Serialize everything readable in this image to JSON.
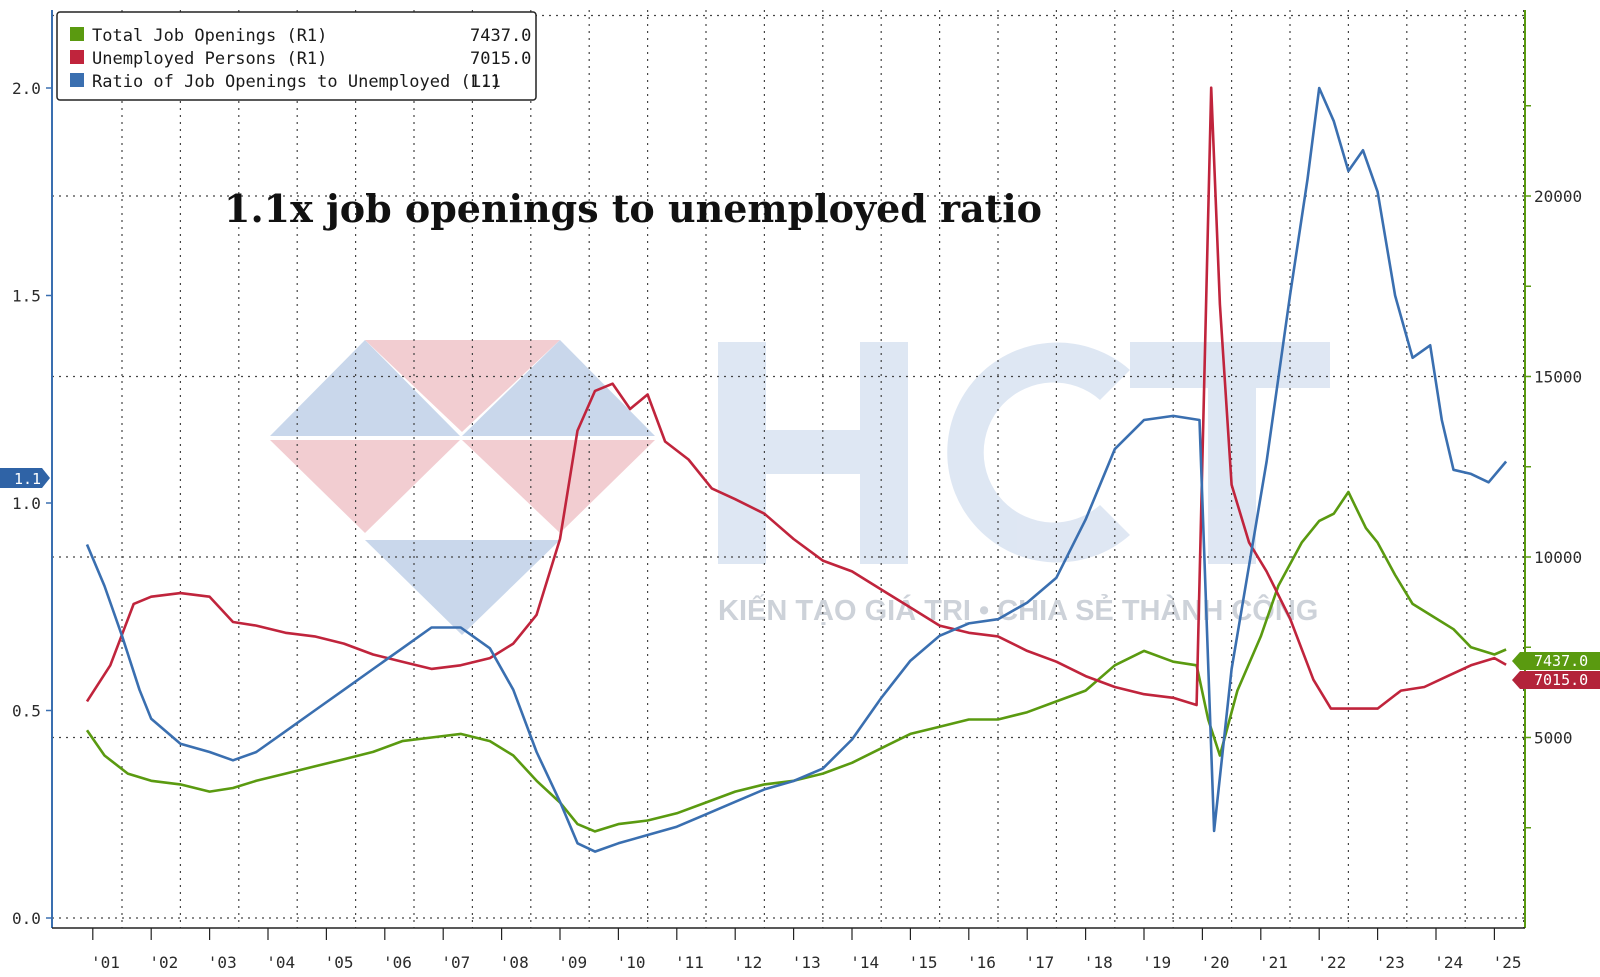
{
  "chart_data": {
    "type": "line",
    "annotation": "1.1x job openings to unemployed ratio",
    "x_ticks": [
      "'01",
      "'02",
      "'03",
      "'04",
      "'05",
      "'06",
      "'07",
      "'08",
      "'09",
      "'10",
      "'11",
      "'12",
      "'13",
      "'14",
      "'15",
      "'16",
      "'17",
      "'18",
      "'19",
      "'20",
      "'21",
      "'22",
      "'23",
      "'24",
      "'25"
    ],
    "left_axis": {
      "ticks": [
        "0.0",
        "0.5",
        "1.0",
        "1.5",
        "2.0"
      ],
      "ylim": [
        0,
        2.2
      ]
    },
    "right_axis": {
      "ticks": [
        "5000",
        "10000",
        "15000",
        "20000"
      ],
      "ylim": [
        0,
        25000
      ]
    },
    "legend": {
      "placement": "top-left",
      "entries": [
        {
          "label": "Total Job Openings (R1)",
          "value": "7437.0",
          "color": "#5a9a10"
        },
        {
          "label": "Unemployed Persons (R1)",
          "value": "7015.0",
          "color": "#c0243c"
        },
        {
          "label": "Ratio of Job Openings to Unemployed (L1)",
          "value": "1.1",
          "color": "#3a6fb0"
        }
      ]
    },
    "last_value_tags": {
      "left": "1.1",
      "right_top": "7437.0",
      "right_bottom": "7015.0"
    },
    "grid": true,
    "series": [
      {
        "name": "Total Job Openings (R1)",
        "axis": "right",
        "color": "#5a9a10",
        "x": [
          2000.9,
          2001.2,
          2001.6,
          2002.0,
          2002.5,
          2003.0,
          2003.4,
          2003.8,
          2004.3,
          2004.8,
          2005.3,
          2005.8,
          2006.3,
          2006.8,
          2007.3,
          2007.8,
          2008.2,
          2008.6,
          2009.0,
          2009.3,
          2009.6,
          2010.0,
          2010.5,
          2011.0,
          2011.5,
          2012.0,
          2012.5,
          2013.0,
          2013.5,
          2014.0,
          2014.5,
          2015.0,
          2015.5,
          2016.0,
          2016.5,
          2017.0,
          2017.5,
          2018.0,
          2018.5,
          2019.0,
          2019.5,
          2019.9,
          2020.1,
          2020.3,
          2020.6,
          2021.0,
          2021.3,
          2021.7,
          2022.0,
          2022.25,
          2022.5,
          2022.8,
          2023.0,
          2023.3,
          2023.6,
          2024.0,
          2024.3,
          2024.6,
          2025.0,
          2025.2
        ],
        "y": [
          5200,
          4500,
          4000,
          3800,
          3700,
          3500,
          3600,
          3800,
          4000,
          4200,
          4400,
          4600,
          4900,
          5000,
          5100,
          4900,
          4500,
          3800,
          3200,
          2600,
          2400,
          2600,
          2700,
          2900,
          3200,
          3500,
          3700,
          3800,
          4000,
          4300,
          4700,
          5100,
          5300,
          5500,
          5500,
          5700,
          6000,
          6300,
          7000,
          7400,
          7100,
          7000,
          5500,
          4500,
          6300,
          7800,
          9200,
          10400,
          11000,
          11200,
          11800,
          10800,
          10400,
          9500,
          8700,
          8300,
          8000,
          7500,
          7300,
          7437
        ]
      },
      {
        "name": "Unemployed Persons (R1)",
        "axis": "right",
        "color": "#c0243c",
        "x": [
          2000.9,
          2001.3,
          2001.7,
          2002.0,
          2002.5,
          2003.0,
          2003.4,
          2003.8,
          2004.3,
          2004.8,
          2005.3,
          2005.8,
          2006.3,
          2006.8,
          2007.3,
          2007.8,
          2008.2,
          2008.6,
          2009.0,
          2009.3,
          2009.6,
          2009.9,
          2010.2,
          2010.5,
          2010.8,
          2011.2,
          2011.6,
          2012.0,
          2012.5,
          2013.0,
          2013.5,
          2014.0,
          2014.5,
          2015.0,
          2015.5,
          2016.0,
          2016.5,
          2017.0,
          2017.5,
          2018.0,
          2018.5,
          2019.0,
          2019.5,
          2019.9,
          2020.15,
          2020.3,
          2020.5,
          2020.8,
          2021.1,
          2021.5,
          2021.9,
          2022.2,
          2022.6,
          2023.0,
          2023.4,
          2023.8,
          2024.2,
          2024.6,
          2025.0,
          2025.2
        ],
        "y": [
          6000,
          7000,
          8700,
          8900,
          9000,
          8900,
          8200,
          8100,
          7900,
          7800,
          7600,
          7300,
          7100,
          6900,
          7000,
          7200,
          7600,
          8400,
          10500,
          13500,
          14600,
          14800,
          14100,
          14500,
          13200,
          12700,
          11900,
          11600,
          11200,
          10500,
          9900,
          9600,
          9100,
          8600,
          8100,
          7900,
          7800,
          7400,
          7100,
          6700,
          6400,
          6200,
          6100,
          5900,
          23000,
          17000,
          12000,
          10400,
          9600,
          8300,
          6600,
          5800,
          5800,
          5800,
          6300,
          6400,
          6700,
          7000,
          7200,
          7015
        ]
      },
      {
        "name": "Ratio of Job Openings to Unemployed (L1)",
        "axis": "left",
        "color": "#3a6fb0",
        "x": [
          2000.9,
          2001.2,
          2001.5,
          2001.8,
          2002.0,
          2002.5,
          2003.0,
          2003.4,
          2003.8,
          2004.3,
          2004.8,
          2005.3,
          2005.8,
          2006.3,
          2006.8,
          2007.3,
          2007.8,
          2008.2,
          2008.6,
          2009.0,
          2009.3,
          2009.6,
          2010.0,
          2010.5,
          2011.0,
          2011.5,
          2012.0,
          2012.5,
          2013.0,
          2013.5,
          2014.0,
          2014.5,
          2015.0,
          2015.5,
          2016.0,
          2016.5,
          2017.0,
          2017.5,
          2018.0,
          2018.5,
          2019.0,
          2019.5,
          2019.95,
          2020.2,
          2020.5,
          2020.8,
          2021.1,
          2021.5,
          2021.8,
          2022.0,
          2022.25,
          2022.5,
          2022.75,
          2023.0,
          2023.3,
          2023.6,
          2023.9,
          2024.1,
          2024.3,
          2024.6,
          2024.9,
          2025.2
        ],
        "y": [
          0.9,
          0.8,
          0.68,
          0.55,
          0.48,
          0.42,
          0.4,
          0.38,
          0.4,
          0.45,
          0.5,
          0.55,
          0.6,
          0.65,
          0.7,
          0.7,
          0.65,
          0.55,
          0.4,
          0.28,
          0.18,
          0.16,
          0.18,
          0.2,
          0.22,
          0.25,
          0.28,
          0.31,
          0.33,
          0.36,
          0.43,
          0.53,
          0.62,
          0.68,
          0.71,
          0.72,
          0.76,
          0.82,
          0.96,
          1.13,
          1.2,
          1.21,
          1.2,
          0.21,
          0.6,
          0.85,
          1.1,
          1.5,
          1.78,
          2.0,
          1.92,
          1.8,
          1.85,
          1.75,
          1.5,
          1.35,
          1.38,
          1.2,
          1.08,
          1.07,
          1.05,
          1.1
        ]
      }
    ]
  }
}
